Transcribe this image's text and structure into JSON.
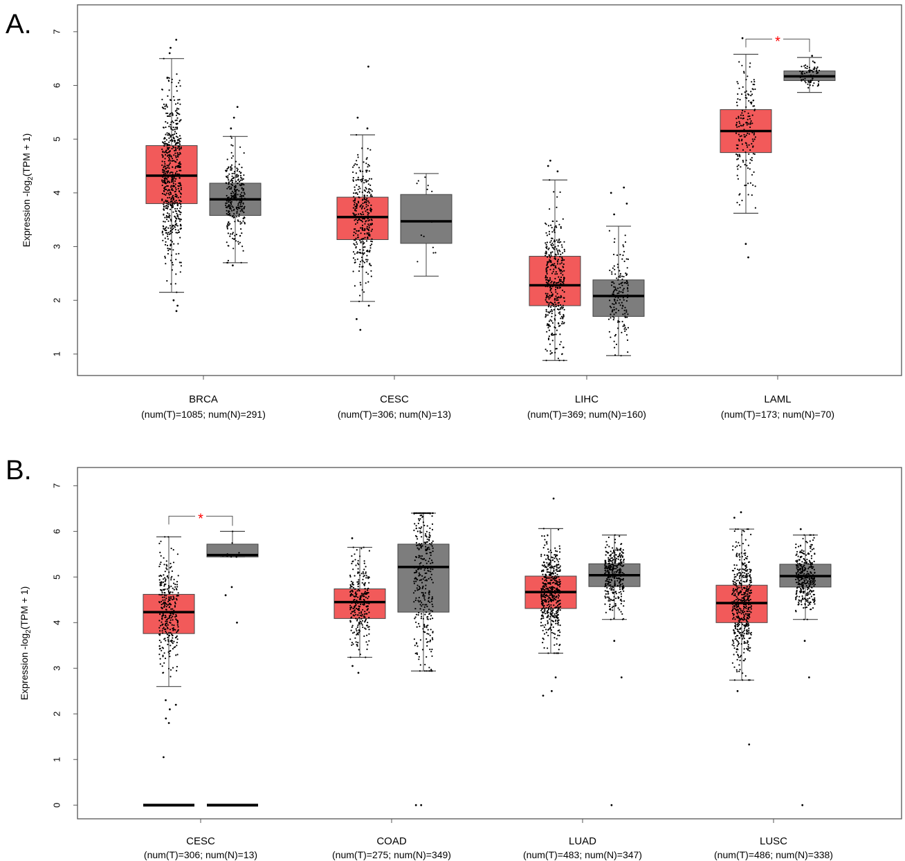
{
  "colors": {
    "tumor": "#f25a5a",
    "normal": "#7d7d7d",
    "points": "#000000",
    "significance": "#ff0000"
  },
  "chart_data": [
    {
      "type": "box",
      "panel_label": "A.",
      "ylabel_prefix": "Expression -log",
      "ylabel_sub": "2",
      "ylabel_suffix": "(TPM + 1)",
      "ylim": [
        0.6,
        7.5
      ],
      "yticks": [
        1,
        2,
        3,
        4,
        5,
        6,
        7
      ],
      "significance_symbol": "*",
      "groups": [
        {
          "category": "BRCA",
          "n_label": "(num(T)=1085; num(N)=291)",
          "significant": false,
          "tumor": {
            "n": 1085,
            "whisker_low": 2.15,
            "q1": 3.8,
            "median": 4.32,
            "q3": 4.88,
            "whisker_high": 6.5,
            "outliers": [
              1.8,
              1.9,
              2.0,
              6.6,
              6.7,
              6.85
            ]
          },
          "normal": {
            "n": 291,
            "whisker_low": 2.7,
            "q1": 3.58,
            "median": 3.88,
            "q3": 4.18,
            "whisker_high": 5.05,
            "outliers": [
              2.65,
              5.2,
              5.4,
              5.6
            ]
          }
        },
        {
          "category": "CESC",
          "n_label": "(num(T)=306; num(N)=13)",
          "significant": false,
          "tumor": {
            "n": 306,
            "whisker_low": 1.98,
            "q1": 3.13,
            "median": 3.55,
            "q3": 3.92,
            "whisker_high": 5.08,
            "outliers": [
              1.45,
              1.65,
              1.9,
              5.2,
              5.4,
              6.35
            ]
          },
          "normal": {
            "n": 13,
            "whisker_low": 2.45,
            "q1": 3.06,
            "median": 3.47,
            "q3": 3.97,
            "whisker_high": 4.36,
            "outliers": []
          }
        },
        {
          "category": "LIHC",
          "n_label": "(num(T)=369; num(N)=160)",
          "significant": false,
          "tumor": {
            "n": 369,
            "whisker_low": 0.88,
            "q1": 1.9,
            "median": 2.28,
            "q3": 2.82,
            "whisker_high": 4.24,
            "outliers": [
              4.4,
              4.5,
              4.6
            ]
          },
          "normal": {
            "n": 160,
            "whisker_low": 0.97,
            "q1": 1.7,
            "median": 2.08,
            "q3": 2.38,
            "whisker_high": 3.38,
            "outliers": [
              3.6,
              3.8,
              4.0,
              4.1
            ]
          }
        },
        {
          "category": "LAML",
          "n_label": "(num(T)=173; num(N)=70)",
          "significant": true,
          "tumor": {
            "n": 173,
            "whisker_low": 3.62,
            "q1": 4.75,
            "median": 5.15,
            "q3": 5.55,
            "whisker_high": 6.58,
            "outliers": [
              2.8,
              3.05,
              6.88
            ]
          },
          "normal": {
            "n": 70,
            "whisker_low": 5.87,
            "q1": 6.09,
            "median": 6.17,
            "q3": 6.27,
            "whisker_high": 6.52,
            "outliers": [
              6.55
            ]
          }
        }
      ]
    },
    {
      "type": "box",
      "panel_label": "B.",
      "ylabel_prefix": "Expression -log",
      "ylabel_sub": "2",
      "ylabel_suffix": "(TPM + 1)",
      "ylim": [
        -0.3,
        7.4
      ],
      "yticks": [
        0,
        1,
        2,
        3,
        4,
        5,
        6,
        7
      ],
      "significance_symbol": "*",
      "groups": [
        {
          "category": "CESC",
          "n_label": "(num(T)=306; num(N)=13)",
          "significant": true,
          "tumor": {
            "n": 306,
            "whisker_low": 2.6,
            "q1": 3.76,
            "median": 4.23,
            "q3": 4.62,
            "whisker_high": 5.88,
            "outliers": [
              1.05,
              1.8,
              1.9,
              2.1,
              2.2,
              2.3
            ],
            "zero_bar": true
          },
          "normal": {
            "n": 13,
            "whisker_low": 5.44,
            "q1": 5.44,
            "median": 5.48,
            "q3": 5.72,
            "whisker_high": 6.0,
            "outliers": [
              4.0,
              4.6,
              4.78
            ],
            "zero_bar": true
          }
        },
        {
          "category": "COAD",
          "n_label": "(num(T)=275; num(N)=349)",
          "significant": false,
          "tumor": {
            "n": 275,
            "whisker_low": 3.24,
            "q1": 4.09,
            "median": 4.45,
            "q3": 4.74,
            "whisker_high": 5.65,
            "outliers": [
              2.9,
              3.05,
              5.85
            ]
          },
          "normal": {
            "n": 349,
            "whisker_low": 2.94,
            "q1": 4.23,
            "median": 5.22,
            "q3": 5.72,
            "whisker_high": 6.4,
            "outliers": [
              0.0,
              0.0
            ]
          }
        },
        {
          "category": "LUAD",
          "n_label": "(num(T)=483; num(N)=347)",
          "significant": false,
          "tumor": {
            "n": 483,
            "whisker_low": 3.33,
            "q1": 4.31,
            "median": 4.67,
            "q3": 5.02,
            "whisker_high": 6.06,
            "outliers": [
              2.4,
              2.5,
              2.8,
              6.72
            ]
          },
          "normal": {
            "n": 347,
            "whisker_low": 4.07,
            "q1": 4.79,
            "median": 5.04,
            "q3": 5.29,
            "whisker_high": 5.92,
            "outliers": [
              0.0,
              2.8,
              3.6
            ]
          }
        },
        {
          "category": "LUSC",
          "n_label": "(num(T)=486; num(N)=338)",
          "significant": false,
          "tumor": {
            "n": 486,
            "whisker_low": 2.74,
            "q1": 4.0,
            "median": 4.43,
            "q3": 4.82,
            "whisker_high": 6.05,
            "outliers": [
              1.33,
              2.5,
              6.3,
              6.42
            ]
          },
          "normal": {
            "n": 338,
            "whisker_low": 4.07,
            "q1": 4.78,
            "median": 5.02,
            "q3": 5.28,
            "whisker_high": 5.92,
            "outliers": [
              0.0,
              2.8,
              3.6,
              6.05
            ]
          }
        }
      ]
    }
  ]
}
